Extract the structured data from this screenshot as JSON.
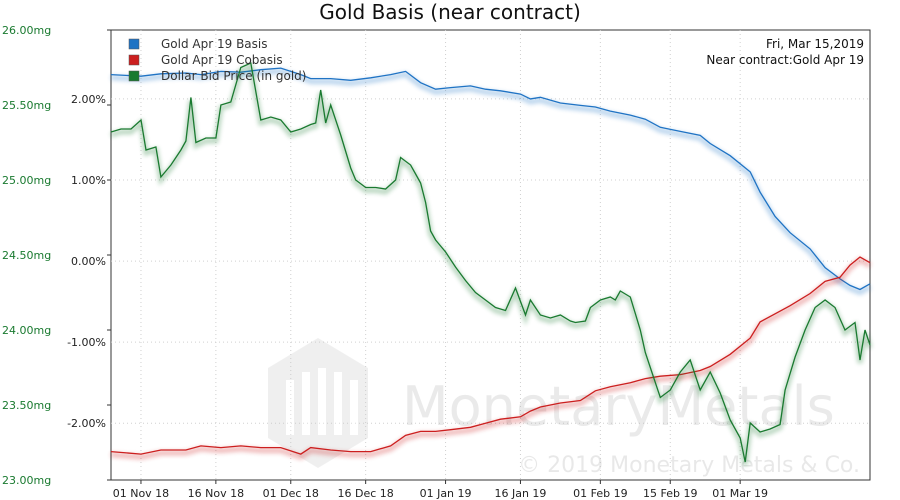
{
  "chart_data": {
    "type": "line",
    "title": "Gold Basis (near contract)",
    "info_date": "Fri, Mar 15,2019",
    "info_contract": "Near contract:Gold Apr 19",
    "watermark": "© 2019 Monetary Metals & Co.",
    "watermark_logo_text": "MonetaryMetals",
    "x_labels": [
      "01 Nov 18",
      "16 Nov 18",
      "01 Dec 18",
      "16 Dec 18",
      "01 Jan 19",
      "16 Jan 19",
      "01 Feb 19",
      "15 Feb 19",
      "01 Mar 19"
    ],
    "x_label_days": [
      6,
      21,
      36,
      51,
      67,
      82,
      98,
      112,
      126
    ],
    "x_range": [
      0,
      152
    ],
    "left_axis": {
      "ticks": [
        "26.00mg",
        "25.50mg",
        "25.00mg",
        "24.50mg",
        "24.00mg",
        "23.50mg",
        "23.00mg"
      ],
      "tick_values": [
        26.0,
        25.5,
        25.0,
        24.5,
        24.0,
        23.5,
        23.0
      ],
      "range": [
        23.0,
        26.0
      ],
      "color": "#1a7a30"
    },
    "right_axis": {
      "ticks": [
        "2.00%",
        "1.00%",
        "0.00%",
        "-1.00%",
        "-2.00%"
      ],
      "tick_values": [
        2.0,
        1.0,
        0.0,
        -1.0,
        -2.0
      ],
      "range": [
        -2.7,
        2.85
      ]
    },
    "series": [
      {
        "name": "Gold Apr 19 Basis",
        "color": "#1f73c4",
        "axis": "right",
        "points": [
          [
            0,
            2.3
          ],
          [
            6,
            2.28
          ],
          [
            10,
            2.31
          ],
          [
            15,
            2.32
          ],
          [
            18,
            2.3
          ],
          [
            22,
            2.34
          ],
          [
            26,
            2.33
          ],
          [
            30,
            2.36
          ],
          [
            34,
            2.38
          ],
          [
            38,
            2.3
          ],
          [
            40,
            2.25
          ],
          [
            44,
            2.25
          ],
          [
            48,
            2.23
          ],
          [
            52,
            2.26
          ],
          [
            56,
            2.3
          ],
          [
            59,
            2.34
          ],
          [
            62,
            2.2
          ],
          [
            65,
            2.12
          ],
          [
            68,
            2.14
          ],
          [
            72,
            2.16
          ],
          [
            75,
            2.12
          ],
          [
            78,
            2.1
          ],
          [
            82,
            2.06
          ],
          [
            84,
            2.0
          ],
          [
            86,
            2.02
          ],
          [
            90,
            1.95
          ],
          [
            94,
            1.92
          ],
          [
            97,
            1.9
          ],
          [
            100,
            1.85
          ],
          [
            104,
            1.8
          ],
          [
            107,
            1.75
          ],
          [
            110,
            1.65
          ],
          [
            114,
            1.6
          ],
          [
            118,
            1.55
          ],
          [
            120,
            1.45
          ],
          [
            124,
            1.3
          ],
          [
            128,
            1.1
          ],
          [
            130,
            0.85
          ],
          [
            133,
            0.55
          ],
          [
            136,
            0.35
          ],
          [
            140,
            0.15
          ],
          [
            143,
            -0.08
          ],
          [
            146,
            -0.22
          ],
          [
            148,
            -0.3
          ],
          [
            150,
            -0.35
          ],
          [
            152,
            -0.28
          ]
        ]
      },
      {
        "name": "Gold Apr 19 Cobasis",
        "color": "#cc1f1f",
        "axis": "right",
        "points": [
          [
            0,
            -2.35
          ],
          [
            6,
            -2.38
          ],
          [
            10,
            -2.33
          ],
          [
            15,
            -2.33
          ],
          [
            18,
            -2.28
          ],
          [
            22,
            -2.3
          ],
          [
            26,
            -2.28
          ],
          [
            30,
            -2.3
          ],
          [
            34,
            -2.3
          ],
          [
            38,
            -2.38
          ],
          [
            40,
            -2.3
          ],
          [
            44,
            -2.33
          ],
          [
            48,
            -2.35
          ],
          [
            52,
            -2.35
          ],
          [
            56,
            -2.28
          ],
          [
            59,
            -2.15
          ],
          [
            62,
            -2.1
          ],
          [
            65,
            -2.1
          ],
          [
            68,
            -2.08
          ],
          [
            72,
            -2.05
          ],
          [
            75,
            -2.0
          ],
          [
            78,
            -1.95
          ],
          [
            82,
            -1.92
          ],
          [
            84,
            -1.85
          ],
          [
            86,
            -1.8
          ],
          [
            90,
            -1.75
          ],
          [
            94,
            -1.72
          ],
          [
            97,
            -1.6
          ],
          [
            100,
            -1.55
          ],
          [
            104,
            -1.5
          ],
          [
            107,
            -1.45
          ],
          [
            110,
            -1.42
          ],
          [
            114,
            -1.4
          ],
          [
            118,
            -1.35
          ],
          [
            120,
            -1.3
          ],
          [
            124,
            -1.15
          ],
          [
            128,
            -0.95
          ],
          [
            130,
            -0.75
          ],
          [
            133,
            -0.65
          ],
          [
            136,
            -0.55
          ],
          [
            140,
            -0.4
          ],
          [
            143,
            -0.25
          ],
          [
            146,
            -0.2
          ],
          [
            148,
            -0.05
          ],
          [
            150,
            0.05
          ],
          [
            152,
            -0.02
          ]
        ]
      },
      {
        "name": "Dollar Bid Price (in gold)",
        "color": "#1a7a30",
        "axis": "left",
        "points": [
          [
            0,
            25.32
          ],
          [
            2,
            25.34
          ],
          [
            4,
            25.34
          ],
          [
            6,
            25.4
          ],
          [
            7,
            25.2
          ],
          [
            9,
            25.22
          ],
          [
            10,
            25.02
          ],
          [
            12,
            25.1
          ],
          [
            14,
            25.2
          ],
          [
            15,
            25.26
          ],
          [
            16,
            25.55
          ],
          [
            17,
            25.25
          ],
          [
            19,
            25.28
          ],
          [
            21,
            25.28
          ],
          [
            22,
            25.5
          ],
          [
            24,
            25.52
          ],
          [
            26,
            25.75
          ],
          [
            28,
            25.78
          ],
          [
            30,
            25.4
          ],
          [
            32,
            25.42
          ],
          [
            34,
            25.4
          ],
          [
            36,
            25.32
          ],
          [
            38,
            25.34
          ],
          [
            40,
            25.37
          ],
          [
            41,
            25.38
          ],
          [
            42,
            25.6
          ],
          [
            43,
            25.38
          ],
          [
            44,
            25.5
          ],
          [
            46,
            25.3
          ],
          [
            48,
            25.08
          ],
          [
            49,
            25.0
          ],
          [
            51,
            24.95
          ],
          [
            53,
            24.95
          ],
          [
            55,
            24.94
          ],
          [
            57,
            25.0
          ],
          [
            58,
            25.15
          ],
          [
            60,
            25.1
          ],
          [
            61,
            25.04
          ],
          [
            62,
            24.98
          ],
          [
            63,
            24.85
          ],
          [
            64,
            24.66
          ],
          [
            65,
            24.6
          ],
          [
            67,
            24.52
          ],
          [
            69,
            24.42
          ],
          [
            71,
            24.33
          ],
          [
            73,
            24.25
          ],
          [
            75,
            24.2
          ],
          [
            77,
            24.15
          ],
          [
            79,
            24.13
          ],
          [
            81,
            24.28
          ],
          [
            83,
            24.1
          ],
          [
            84,
            24.2
          ],
          [
            86,
            24.1
          ],
          [
            88,
            24.08
          ],
          [
            90,
            24.1
          ],
          [
            92,
            24.06
          ],
          [
            93,
            24.05
          ],
          [
            95,
            24.06
          ],
          [
            96,
            24.15
          ],
          [
            98,
            24.2
          ],
          [
            100,
            24.22
          ],
          [
            101,
            24.2
          ],
          [
            102,
            24.26
          ],
          [
            104,
            24.22
          ],
          [
            106,
            24.0
          ],
          [
            107,
            23.85
          ],
          [
            108,
            23.75
          ],
          [
            110,
            23.55
          ],
          [
            112,
            23.6
          ],
          [
            114,
            23.72
          ],
          [
            116,
            23.8
          ],
          [
            118,
            23.6
          ],
          [
            120,
            23.72
          ],
          [
            122,
            23.58
          ],
          [
            124,
            23.4
          ],
          [
            126,
            23.28
          ],
          [
            127,
            23.12
          ],
          [
            128,
            23.38
          ],
          [
            130,
            23.32
          ],
          [
            132,
            23.34
          ],
          [
            134,
            23.37
          ],
          [
            135,
            23.6
          ],
          [
            137,
            23.82
          ],
          [
            139,
            24.0
          ],
          [
            141,
            24.15
          ],
          [
            143,
            24.2
          ],
          [
            145,
            24.15
          ],
          [
            147,
            24.0
          ],
          [
            149,
            24.05
          ],
          [
            150,
            23.8
          ],
          [
            151,
            24.0
          ],
          [
            152,
            23.9
          ]
        ]
      }
    ]
  }
}
